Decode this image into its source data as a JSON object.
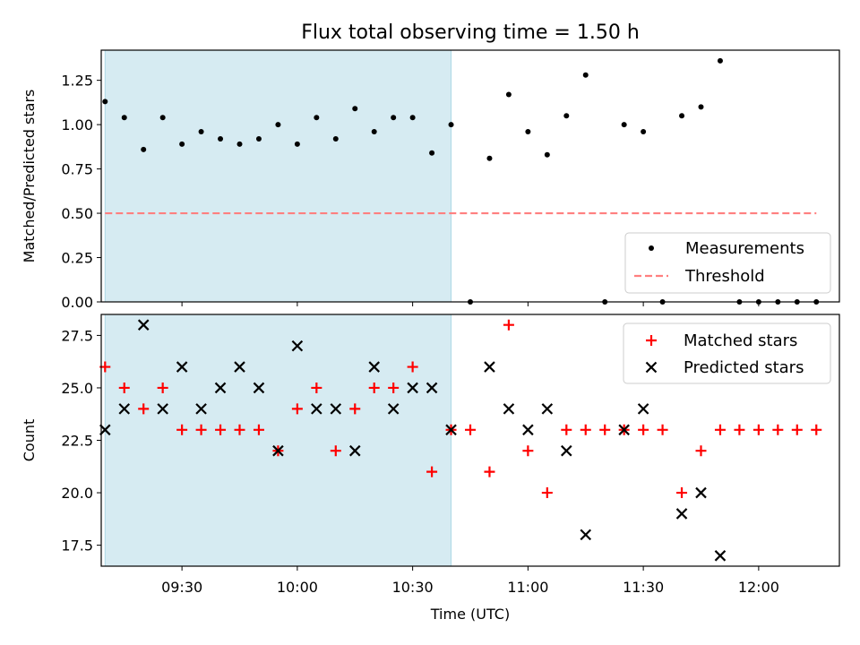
{
  "title": "Flux total observing time = 1.50 h",
  "colors": {
    "shade": "#add8e6",
    "threshold": "#ff7f7f",
    "matched": "#ff0000",
    "predicted": "#000000",
    "measure": "#000000"
  },
  "chart_data": [
    {
      "type": "scatter",
      "ylabel": "Matched/Predicted stars",
      "xlabel": "",
      "ylim": [
        0,
        1.42
      ],
      "yticks": [
        "0.00",
        "0.25",
        "0.50",
        "0.75",
        "1.00",
        "1.25"
      ],
      "xrange": [
        "09:09",
        "12:21"
      ],
      "shaded_interval": [
        "09:10",
        "10:40"
      ],
      "threshold": 0.5,
      "threshold_x": [
        "09:10",
        "12:15"
      ],
      "legend_position": "lower right",
      "legend": [
        "Measurements",
        "Threshold"
      ],
      "series": [
        {
          "name": "Measurements",
          "x": [
            "09:10",
            "09:15",
            "09:20",
            "09:25",
            "09:30",
            "09:35",
            "09:40",
            "09:45",
            "09:50",
            "09:55",
            "10:00",
            "10:05",
            "10:10",
            "10:15",
            "10:20",
            "10:25",
            "10:30",
            "10:35",
            "10:40",
            "10:45",
            "10:50",
            "10:55",
            "11:00",
            "11:05",
            "11:10",
            "11:15",
            "11:20",
            "11:25",
            "11:30",
            "11:35",
            "11:40",
            "11:45",
            "11:50",
            "11:55",
            "12:00",
            "12:05",
            "12:10",
            "12:15"
          ],
          "y": [
            1.13,
            1.04,
            0.86,
            1.04,
            0.89,
            0.96,
            0.92,
            0.89,
            0.92,
            1.0,
            0.89,
            1.04,
            0.92,
            1.09,
            0.96,
            1.04,
            1.04,
            0.84,
            1.0,
            0.0,
            0.81,
            1.17,
            0.96,
            0.83,
            1.05,
            1.28,
            0.0,
            1.0,
            0.96,
            0.0,
            1.05,
            1.1,
            1.36,
            0.0,
            0.0,
            0.0,
            0.0,
            0.0
          ]
        }
      ]
    },
    {
      "type": "scatter",
      "ylabel": "Count",
      "xlabel": "Time (UTC)",
      "ylim": [
        16.5,
        28.5
      ],
      "yticks": [
        "17.5",
        "20.0",
        "22.5",
        "25.0",
        "27.5"
      ],
      "xrange": [
        "09:09",
        "12:21"
      ],
      "xticks": [
        "09:30",
        "10:00",
        "10:30",
        "11:00",
        "11:30",
        "12:00"
      ],
      "shaded_interval": [
        "09:10",
        "10:40"
      ],
      "legend_position": "upper right",
      "legend": [
        "Matched stars",
        "Predicted stars"
      ],
      "series": [
        {
          "name": "Matched stars",
          "x": [
            "09:10",
            "09:15",
            "09:20",
            "09:25",
            "09:30",
            "09:35",
            "09:40",
            "09:45",
            "09:50",
            "09:55",
            "10:00",
            "10:05",
            "10:10",
            "10:15",
            "10:20",
            "10:25",
            "10:30",
            "10:35",
            "10:40",
            "10:45",
            "10:50",
            "10:55",
            "11:00",
            "11:05",
            "11:10",
            "11:15",
            "11:20",
            "11:25",
            "11:30",
            "11:35",
            "11:40",
            "11:45",
            "11:50",
            "11:55",
            "12:00",
            "12:05",
            "12:10",
            "12:15"
          ],
          "y": [
            26,
            25,
            24,
            25,
            23,
            23,
            23,
            23,
            23,
            22,
            24,
            25,
            22,
            24,
            25,
            25,
            26,
            21,
            23,
            23,
            21,
            28,
            22,
            20,
            23,
            23,
            23,
            23,
            23,
            23,
            20,
            22,
            23,
            23,
            23,
            23,
            23,
            23
          ]
        },
        {
          "name": "Predicted stars",
          "x": [
            "09:10",
            "09:15",
            "09:20",
            "09:25",
            "09:30",
            "09:35",
            "09:40",
            "09:45",
            "09:50",
            "09:55",
            "10:00",
            "10:05",
            "10:10",
            "10:15",
            "10:20",
            "10:25",
            "10:30",
            "10:35",
            "10:40",
            "10:50",
            "10:55",
            "11:00",
            "11:05",
            "11:10",
            "11:15",
            "11:25",
            "11:30",
            "11:40",
            "11:45",
            "11:50"
          ],
          "y": [
            23,
            24,
            28,
            24,
            26,
            24,
            25,
            26,
            25,
            22,
            27,
            24,
            24,
            22,
            26,
            24,
            25,
            25,
            23,
            26,
            24,
            23,
            24,
            22,
            18,
            23,
            24,
            19,
            20,
            17
          ]
        }
      ]
    }
  ]
}
